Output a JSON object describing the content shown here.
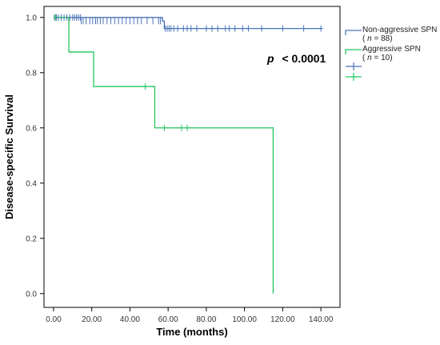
{
  "chart_data": {
    "type": "line",
    "subtype": "kaplan-meier",
    "xlabel": "Time (months)",
    "ylabel": "Disease-specific Survival",
    "xlim": [
      -5,
      150
    ],
    "ylim": [
      -0.05,
      1.04
    ],
    "xticks": [
      "0.00",
      "20.00",
      "40.00",
      "60.00",
      "80.00",
      "100.00",
      "120.00",
      "140.00"
    ],
    "yticks": [
      "0.0",
      "0.2",
      "0.4",
      "0.6",
      "0.8",
      "1.0"
    ],
    "annotation": {
      "p_symbol": "p",
      "text": "< 0.0001"
    },
    "legend_placement": "right",
    "series": [
      {
        "legend_line1": "Non-aggressive SPN",
        "legend_n_prefix": "( ",
        "legend_n_symbol": "n",
        "legend_n_suffix": " = 88)",
        "color": "#4a72b8",
        "steps": [
          [
            0,
            1.0
          ],
          [
            57,
            1.0
          ],
          [
            57,
            0.987
          ],
          [
            58,
            0.987
          ],
          [
            58,
            0.96
          ],
          [
            141,
            0.96
          ]
        ],
        "censored": [
          [
            0.5,
            1.0
          ],
          [
            1.5,
            1.0
          ],
          [
            2.5,
            1.0
          ],
          [
            4,
            1.0
          ],
          [
            5.5,
            1.0
          ],
          [
            7,
            1.0
          ],
          [
            8.5,
            1.0
          ],
          [
            10,
            1.0
          ],
          [
            11,
            1.0
          ],
          [
            12,
            1.0
          ],
          [
            13,
            1.0
          ],
          [
            14,
            1.0
          ],
          [
            14.5,
            0.987
          ],
          [
            15.5,
            0.987
          ],
          [
            17,
            0.987
          ],
          [
            19,
            0.987
          ],
          [
            20.5,
            0.987
          ],
          [
            22,
            0.987
          ],
          [
            23,
            0.987
          ],
          [
            24.5,
            0.987
          ],
          [
            26,
            0.987
          ],
          [
            28,
            0.987
          ],
          [
            30,
            0.987
          ],
          [
            32,
            0.987
          ],
          [
            34,
            0.987
          ],
          [
            36,
            0.987
          ],
          [
            38,
            0.987
          ],
          [
            40,
            0.987
          ],
          [
            42,
            0.987
          ],
          [
            44,
            0.987
          ],
          [
            46,
            0.987
          ],
          [
            49,
            0.987
          ],
          [
            52,
            0.987
          ],
          [
            55,
            0.987
          ],
          [
            56,
            0.987
          ],
          [
            58.5,
            0.96
          ],
          [
            59.5,
            0.96
          ],
          [
            60.5,
            0.96
          ],
          [
            61.5,
            0.96
          ],
          [
            63,
            0.96
          ],
          [
            65,
            0.96
          ],
          [
            68,
            0.96
          ],
          [
            70,
            0.96
          ],
          [
            72,
            0.96
          ],
          [
            75,
            0.96
          ],
          [
            80,
            0.96
          ],
          [
            83,
            0.96
          ],
          [
            86,
            0.96
          ],
          [
            90,
            0.96
          ],
          [
            92,
            0.96
          ],
          [
            95,
            0.96
          ],
          [
            99,
            0.96
          ],
          [
            102,
            0.96
          ],
          [
            109,
            0.96
          ],
          [
            120,
            0.96
          ],
          [
            131,
            0.96
          ],
          [
            140,
            0.96
          ]
        ]
      },
      {
        "legend_line1": "Aggressive SPN",
        "legend_n_prefix": "( ",
        "legend_n_symbol": "n",
        "legend_n_suffix": " = 10)",
        "color": "#22c55e",
        "steps": [
          [
            0,
            1.0
          ],
          [
            8,
            1.0
          ],
          [
            8,
            0.875
          ],
          [
            21,
            0.875
          ],
          [
            21,
            0.75
          ],
          [
            53,
            0.75
          ],
          [
            53,
            0.6
          ],
          [
            115,
            0.6
          ],
          [
            115,
            0.0
          ]
        ],
        "censored": [
          [
            1,
            1.0
          ],
          [
            48,
            0.75
          ],
          [
            58,
            0.6
          ],
          [
            67,
            0.6
          ],
          [
            70,
            0.6
          ]
        ]
      }
    ]
  }
}
